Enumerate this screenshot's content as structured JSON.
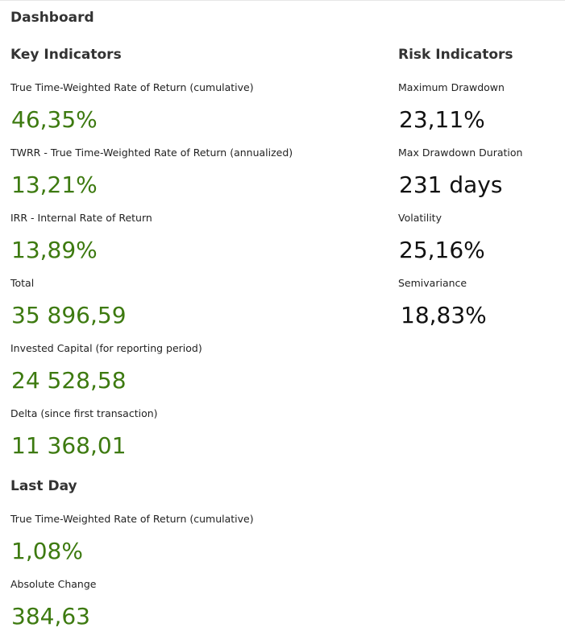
{
  "dashboard": {
    "title": "Dashboard"
  },
  "key_indicators": {
    "title": "Key Indicators",
    "items": [
      {
        "label": "True Time-Weighted Rate of Return (cumulative)",
        "value": "46,35%"
      },
      {
        "label": "TWRR - True Time-Weighted Rate of Return (annualized)",
        "value": "13,21%"
      },
      {
        "label": "IRR - Internal Rate of Return",
        "value": "13,89%"
      },
      {
        "label": "Total",
        "value": "35 896,59"
      },
      {
        "label": "Invested Capital (for reporting period)",
        "value": "24 528,58"
      },
      {
        "label": "Delta (since first transaction)",
        "value": "11 368,01"
      }
    ]
  },
  "risk_indicators": {
    "title": "Risk Indicators",
    "items": [
      {
        "label": "Maximum Drawdown",
        "value": "23,11%"
      },
      {
        "label": "Max Drawdown Duration",
        "value": "231 days"
      },
      {
        "label": "Volatility",
        "value": "25,16%"
      },
      {
        "label": "Semivariance",
        "value": "18,83%"
      }
    ]
  },
  "last_day": {
    "title": "Last Day",
    "items": [
      {
        "label": "True Time-Weighted Rate of Return (cumulative)",
        "value": "1,08%"
      },
      {
        "label": "Absolute Change",
        "value": "384,63"
      }
    ]
  },
  "colors": {
    "positive_value": "#3d7a10",
    "neutral_value": "#111111"
  }
}
